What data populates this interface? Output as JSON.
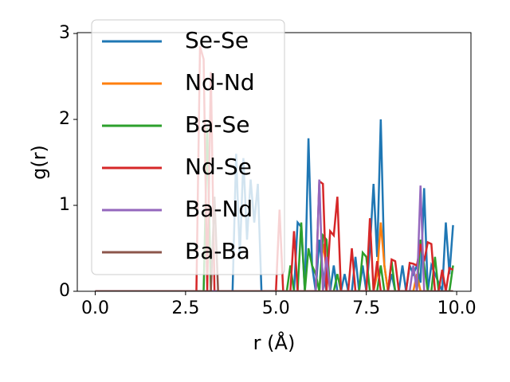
{
  "chart_data": {
    "type": "line",
    "xlabel": "r (Å)",
    "ylabel": "g(r)",
    "xlim": [
      -0.495,
      10.395
    ],
    "ylim": [
      0,
      3.01
    ],
    "xticks": [
      {
        "value": 0,
        "label": "0.0"
      },
      {
        "value": 2.5,
        "label": "2.5"
      },
      {
        "value": 5,
        "label": "5.0"
      },
      {
        "value": 7.5,
        "label": "7.5"
      },
      {
        "value": 10,
        "label": "10.0"
      }
    ],
    "yticks": [
      0,
      1,
      2,
      3
    ],
    "legend": "upper left",
    "x": [
      0,
      0.1,
      0.2,
      0.3,
      0.4,
      0.5,
      0.6,
      0.7,
      0.8,
      0.9,
      1,
      1.1,
      1.2,
      1.3,
      1.4,
      1.5,
      1.6,
      1.7,
      1.8,
      1.9,
      2,
      2.1,
      2.2,
      2.3,
      2.4,
      2.5,
      2.6,
      2.7,
      2.8,
      2.9,
      3,
      3.1,
      3.2,
      3.3,
      3.4,
      3.5,
      3.6,
      3.7,
      3.8,
      3.9,
      4,
      4.1,
      4.2,
      4.3,
      4.4,
      4.5,
      4.6,
      4.7,
      4.8,
      4.9,
      5,
      5.1,
      5.2,
      5.3,
      5.4,
      5.5,
      5.6,
      5.7,
      5.8,
      5.9,
      6,
      6.1,
      6.2,
      6.3,
      6.4,
      6.5,
      6.6,
      6.7,
      6.8,
      6.9,
      7,
      7.1,
      7.2,
      7.3,
      7.4,
      7.5,
      7.6,
      7.7,
      7.8,
      7.9,
      8,
      8.1,
      8.2,
      8.3,
      8.4,
      8.5,
      8.6,
      8.7,
      8.8,
      8.9,
      9,
      9.1,
      9.2,
      9.3,
      9.4,
      9.5,
      9.6,
      9.7,
      9.8,
      9.9
    ],
    "series": [
      {
        "name": "Se-Se",
        "color": "#1f77b4",
        "values": [
          0,
          0,
          0,
          0,
          0,
          0,
          0,
          0,
          0,
          0,
          0,
          0,
          0,
          0,
          0,
          0,
          0,
          0,
          0,
          0,
          0,
          0,
          0,
          0,
          0,
          0,
          0,
          0,
          0,
          0,
          0,
          0,
          0,
          0,
          0,
          0,
          0,
          0,
          0,
          1.6,
          0.4,
          1.55,
          0.6,
          1.3,
          0.8,
          1.25,
          0,
          0,
          0,
          0,
          0,
          0,
          0,
          0,
          0,
          0,
          0.8,
          0.75,
          0,
          1.78,
          0.3,
          0,
          0.6,
          0.2,
          0,
          0,
          0.3,
          0,
          0,
          0.2,
          0,
          0,
          0.4,
          0,
          0.3,
          0,
          0.5,
          1.25,
          0.4,
          2.0,
          0.3,
          0,
          0.2,
          0,
          0,
          0.3,
          0,
          0.3,
          0.2,
          0.3,
          0.1,
          1.2,
          0,
          0.3,
          0.2,
          0.1,
          0,
          0.8,
          0.2,
          0.77
        ]
      },
      {
        "name": "Nd-Nd",
        "color": "#ff7f0e",
        "values": [
          0,
          0,
          0,
          0,
          0,
          0,
          0,
          0,
          0,
          0,
          0,
          0,
          0,
          0,
          0,
          0,
          0,
          0,
          0,
          0,
          0,
          0,
          0,
          0,
          0,
          0,
          0,
          0,
          0,
          0,
          0,
          0,
          0,
          0,
          0,
          0,
          0,
          0,
          0,
          0,
          0,
          0,
          0,
          0,
          0,
          0,
          0,
          0,
          0,
          0,
          0,
          0,
          0,
          0,
          0,
          0,
          0,
          0,
          0,
          0,
          0,
          0,
          0,
          0.55,
          0.3,
          0,
          0,
          0,
          0,
          0,
          0,
          0,
          0,
          0,
          0,
          0,
          0,
          0,
          0.2,
          0.8,
          0.3,
          0,
          0,
          0,
          0,
          0,
          0,
          0,
          0,
          0.2,
          0,
          0,
          0,
          0,
          0,
          0,
          0,
          0,
          0,
          0
        ]
      },
      {
        "name": "Ba-Se",
        "color": "#2ca02c",
        "values": [
          0,
          0,
          0,
          0,
          0,
          0,
          0,
          0,
          0,
          0,
          0,
          0,
          0,
          0,
          0,
          0,
          0,
          0,
          0,
          0,
          0,
          0,
          0,
          0,
          0,
          0,
          0,
          0,
          0,
          0,
          0,
          1.9,
          0,
          0,
          0,
          0,
          0,
          0,
          0,
          0,
          0,
          0,
          0,
          0,
          0,
          0,
          0,
          0,
          0,
          0,
          0,
          0,
          0,
          0,
          0.3,
          0,
          0,
          0.8,
          0,
          0.5,
          0.3,
          0.2,
          0,
          0.65,
          0.6,
          0,
          0,
          0.2,
          0,
          0,
          0,
          0,
          0,
          0,
          0.45,
          0.4,
          0,
          0,
          0,
          0.3,
          0,
          0,
          0.35,
          0,
          0,
          0,
          0,
          0,
          0,
          0,
          0.6,
          0.3,
          0,
          0,
          0.4,
          0,
          0,
          0,
          0,
          0.3
        ]
      },
      {
        "name": "Nd-Se",
        "color": "#d62728",
        "values": [
          0,
          0,
          0,
          0,
          0,
          0,
          0,
          0,
          0,
          0,
          0,
          0,
          0,
          0,
          0,
          0,
          0,
          0,
          0,
          0,
          0,
          0,
          0,
          0,
          0,
          0,
          0,
          0,
          0,
          2.85,
          2.7,
          0,
          2.55,
          0,
          0,
          0,
          0,
          0,
          0,
          0,
          0,
          0,
          0,
          0,
          0,
          0,
          0,
          0,
          0,
          0,
          0,
          0.95,
          0,
          0,
          0,
          0.7,
          0,
          0,
          0,
          0,
          0,
          0,
          1.28,
          1.25,
          0,
          0.7,
          0.65,
          1.1,
          0,
          0,
          0,
          0.5,
          0,
          0,
          0,
          0,
          0.85,
          0,
          0.35,
          0,
          0,
          0,
          0.37,
          0.35,
          0,
          0,
          0,
          0.33,
          0.32,
          0.3,
          0.55,
          0.35,
          0.57,
          0.55,
          0,
          0,
          0.25,
          0,
          0.27,
          0.25
        ]
      },
      {
        "name": "Ba-Nd",
        "color": "#9467bd",
        "values": [
          0,
          0,
          0,
          0,
          0,
          0,
          0,
          0,
          0,
          0,
          0,
          0,
          0,
          0,
          0,
          0,
          0,
          0,
          0,
          0,
          0,
          0,
          0,
          0,
          0,
          0,
          0,
          0,
          0,
          0,
          0,
          0,
          0,
          0,
          0,
          0,
          0,
          0,
          0,
          0,
          0,
          0,
          0,
          0,
          0,
          0,
          0,
          0,
          0,
          0,
          0,
          0,
          0,
          0,
          0,
          0,
          0,
          0,
          0,
          0,
          0,
          0,
          1.3,
          0,
          0.4,
          0,
          0,
          0,
          0,
          0,
          0,
          0,
          0,
          0,
          0,
          0,
          0,
          0,
          0,
          0,
          0,
          0,
          0,
          0,
          0,
          0,
          0,
          0,
          0.3,
          0,
          1.23,
          0,
          0,
          0,
          0,
          0,
          0,
          0,
          0,
          0
        ]
      },
      {
        "name": "Ba-Ba",
        "color": "#8c564b",
        "values": [
          0,
          0,
          0,
          0,
          0,
          0,
          0,
          0,
          0,
          0,
          0,
          0,
          0,
          0,
          0,
          0,
          0,
          0,
          0,
          0,
          0,
          0,
          0,
          0,
          0,
          0,
          0,
          0,
          0,
          0,
          0,
          0,
          0,
          1.1,
          0,
          0,
          0,
          0,
          0,
          0,
          0,
          0,
          0,
          0,
          0,
          0,
          0,
          0,
          0,
          0,
          0,
          0,
          0,
          0,
          0,
          0,
          0,
          0,
          0,
          0,
          0,
          0,
          0,
          0,
          0,
          0,
          0,
          0,
          0,
          0,
          0,
          0,
          0,
          0,
          0,
          0,
          0,
          0,
          0,
          0,
          0,
          0,
          0,
          0,
          0,
          0,
          0,
          0,
          0,
          0,
          0,
          0,
          0,
          0,
          0,
          0,
          0,
          0,
          0,
          0
        ]
      }
    ]
  }
}
